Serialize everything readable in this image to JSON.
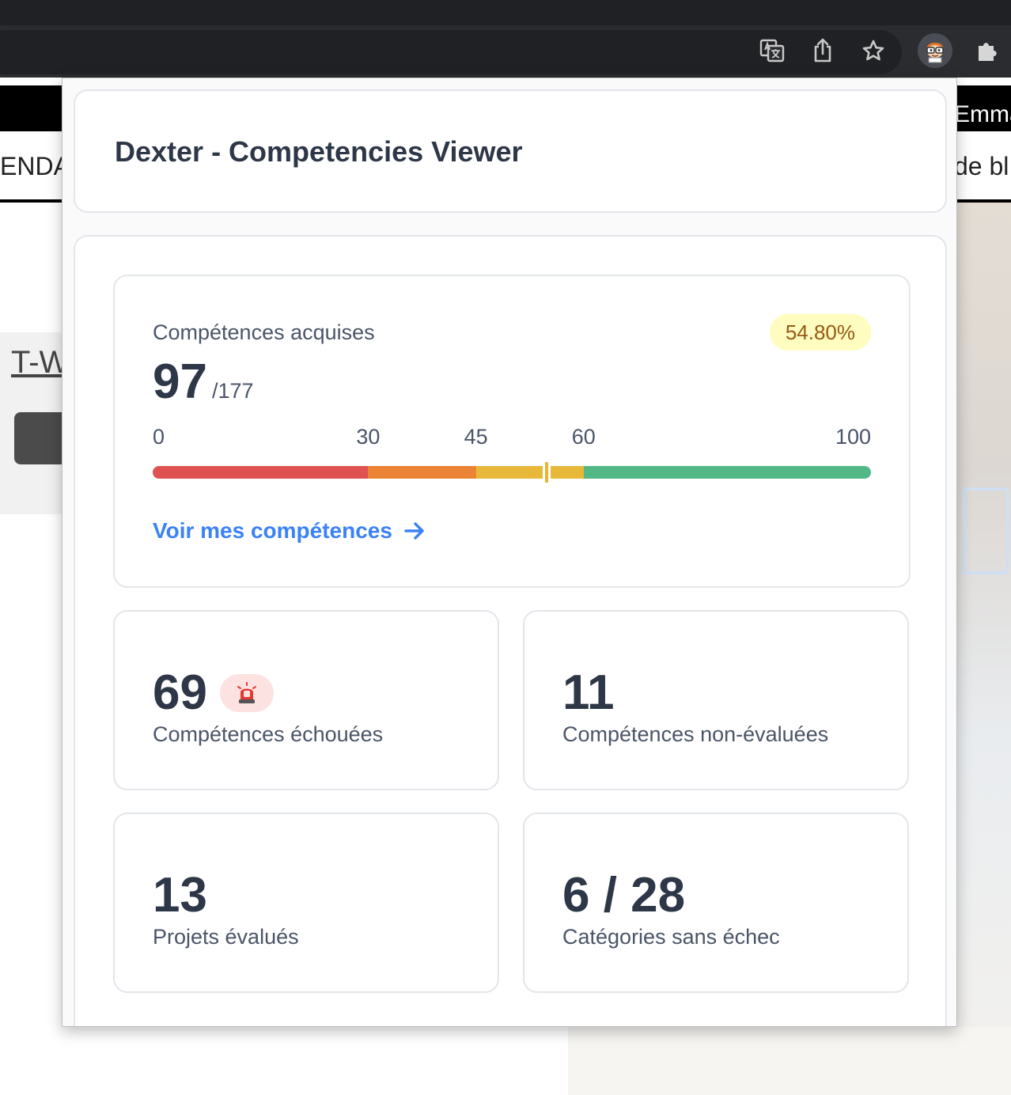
{
  "background_page": {
    "user_name": "Emma",
    "nav_left": "ENDA",
    "nav_right": "de bl",
    "link_text": "T-W"
  },
  "browser": {
    "toolbar_icons": [
      "translate-icon",
      "share-icon",
      "bookmark-star-icon",
      "dexter-extension-icon",
      "extensions-puzzle-icon"
    ]
  },
  "popup": {
    "title": "Dexter - Competencies Viewer",
    "summary": {
      "label": "Compétences acquises",
      "percentage": "54.80%",
      "acquired": "97",
      "total": "/177",
      "gauge_value": 54.8,
      "gauge_ticks": [
        "0",
        "30",
        "45",
        "60",
        "100"
      ],
      "gauge_segments": [
        {
          "from": 0,
          "to": 30,
          "color": "#e05252"
        },
        {
          "from": 30,
          "to": 45,
          "color": "#ec8435"
        },
        {
          "from": 45,
          "to": 60,
          "color": "#e8b83a"
        },
        {
          "from": 60,
          "to": 100,
          "color": "#52b986"
        }
      ],
      "link_label": "Voir mes compétences"
    },
    "stats": {
      "failed": {
        "value": "69",
        "label": "Compétences échouées",
        "badge_icon": "siren-icon"
      },
      "not_evaluated": {
        "value": "11",
        "label": "Compétences non-évaluées"
      },
      "projects": {
        "value": "13",
        "label": "Projets évalués"
      },
      "categories": {
        "value": "6 / 28",
        "label": "Catégories sans échec"
      }
    }
  }
}
